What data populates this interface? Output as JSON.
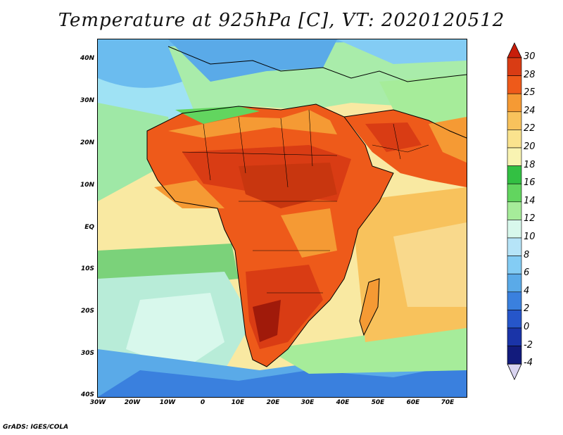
{
  "title": "Temperature at 925hPa [C], VT: 2020120512",
  "footer": "GrADS: IGES/COLA",
  "axes": {
    "y_ticks": [
      "40N",
      "30N",
      "20N",
      "10N",
      "EQ",
      "10S",
      "20S",
      "30S",
      "40S"
    ],
    "x_ticks": [
      "30W",
      "20W",
      "10W",
      "0",
      "10E",
      "20E",
      "30E",
      "40E",
      "50E",
      "60E",
      "70E"
    ]
  },
  "colorbar": {
    "labels": [
      "30",
      "28",
      "25",
      "24",
      "22",
      "20",
      "18",
      "16",
      "14",
      "12",
      "10",
      "8",
      "6",
      "4",
      "2",
      "0",
      "-2",
      "-4"
    ],
    "colors": [
      "#a01a0a",
      "#d93c14",
      "#ee5a1a",
      "#f59a34",
      "#f8c25c",
      "#fae38e",
      "#f9f3b2",
      "#33c043",
      "#62d55f",
      "#a6ec9a",
      "#d8f8ec",
      "#b6e4f8",
      "#83ccf4",
      "#5aaae8",
      "#3a80de",
      "#2656ca",
      "#1a34a8",
      "#121b7c",
      "#d9d4f0"
    ],
    "top_arrow_color": "#c81e0a",
    "bottom_arrow_color": "#d9d4f0"
  },
  "map": {
    "ocean_north_atlantic": "#6bbcef",
    "mediterranean": "#a9ecaa",
    "equatorial_atlantic": "#f9e9a2",
    "south_atlantic_cool": "#7fd0f0",
    "southern_ocean": "#4a8fe0",
    "indian_ocean": "#f8d98a",
    "africa_hot": "#e2451a",
    "sahel_very_hot": "#c8360f",
    "coastline_color": "#000000"
  }
}
